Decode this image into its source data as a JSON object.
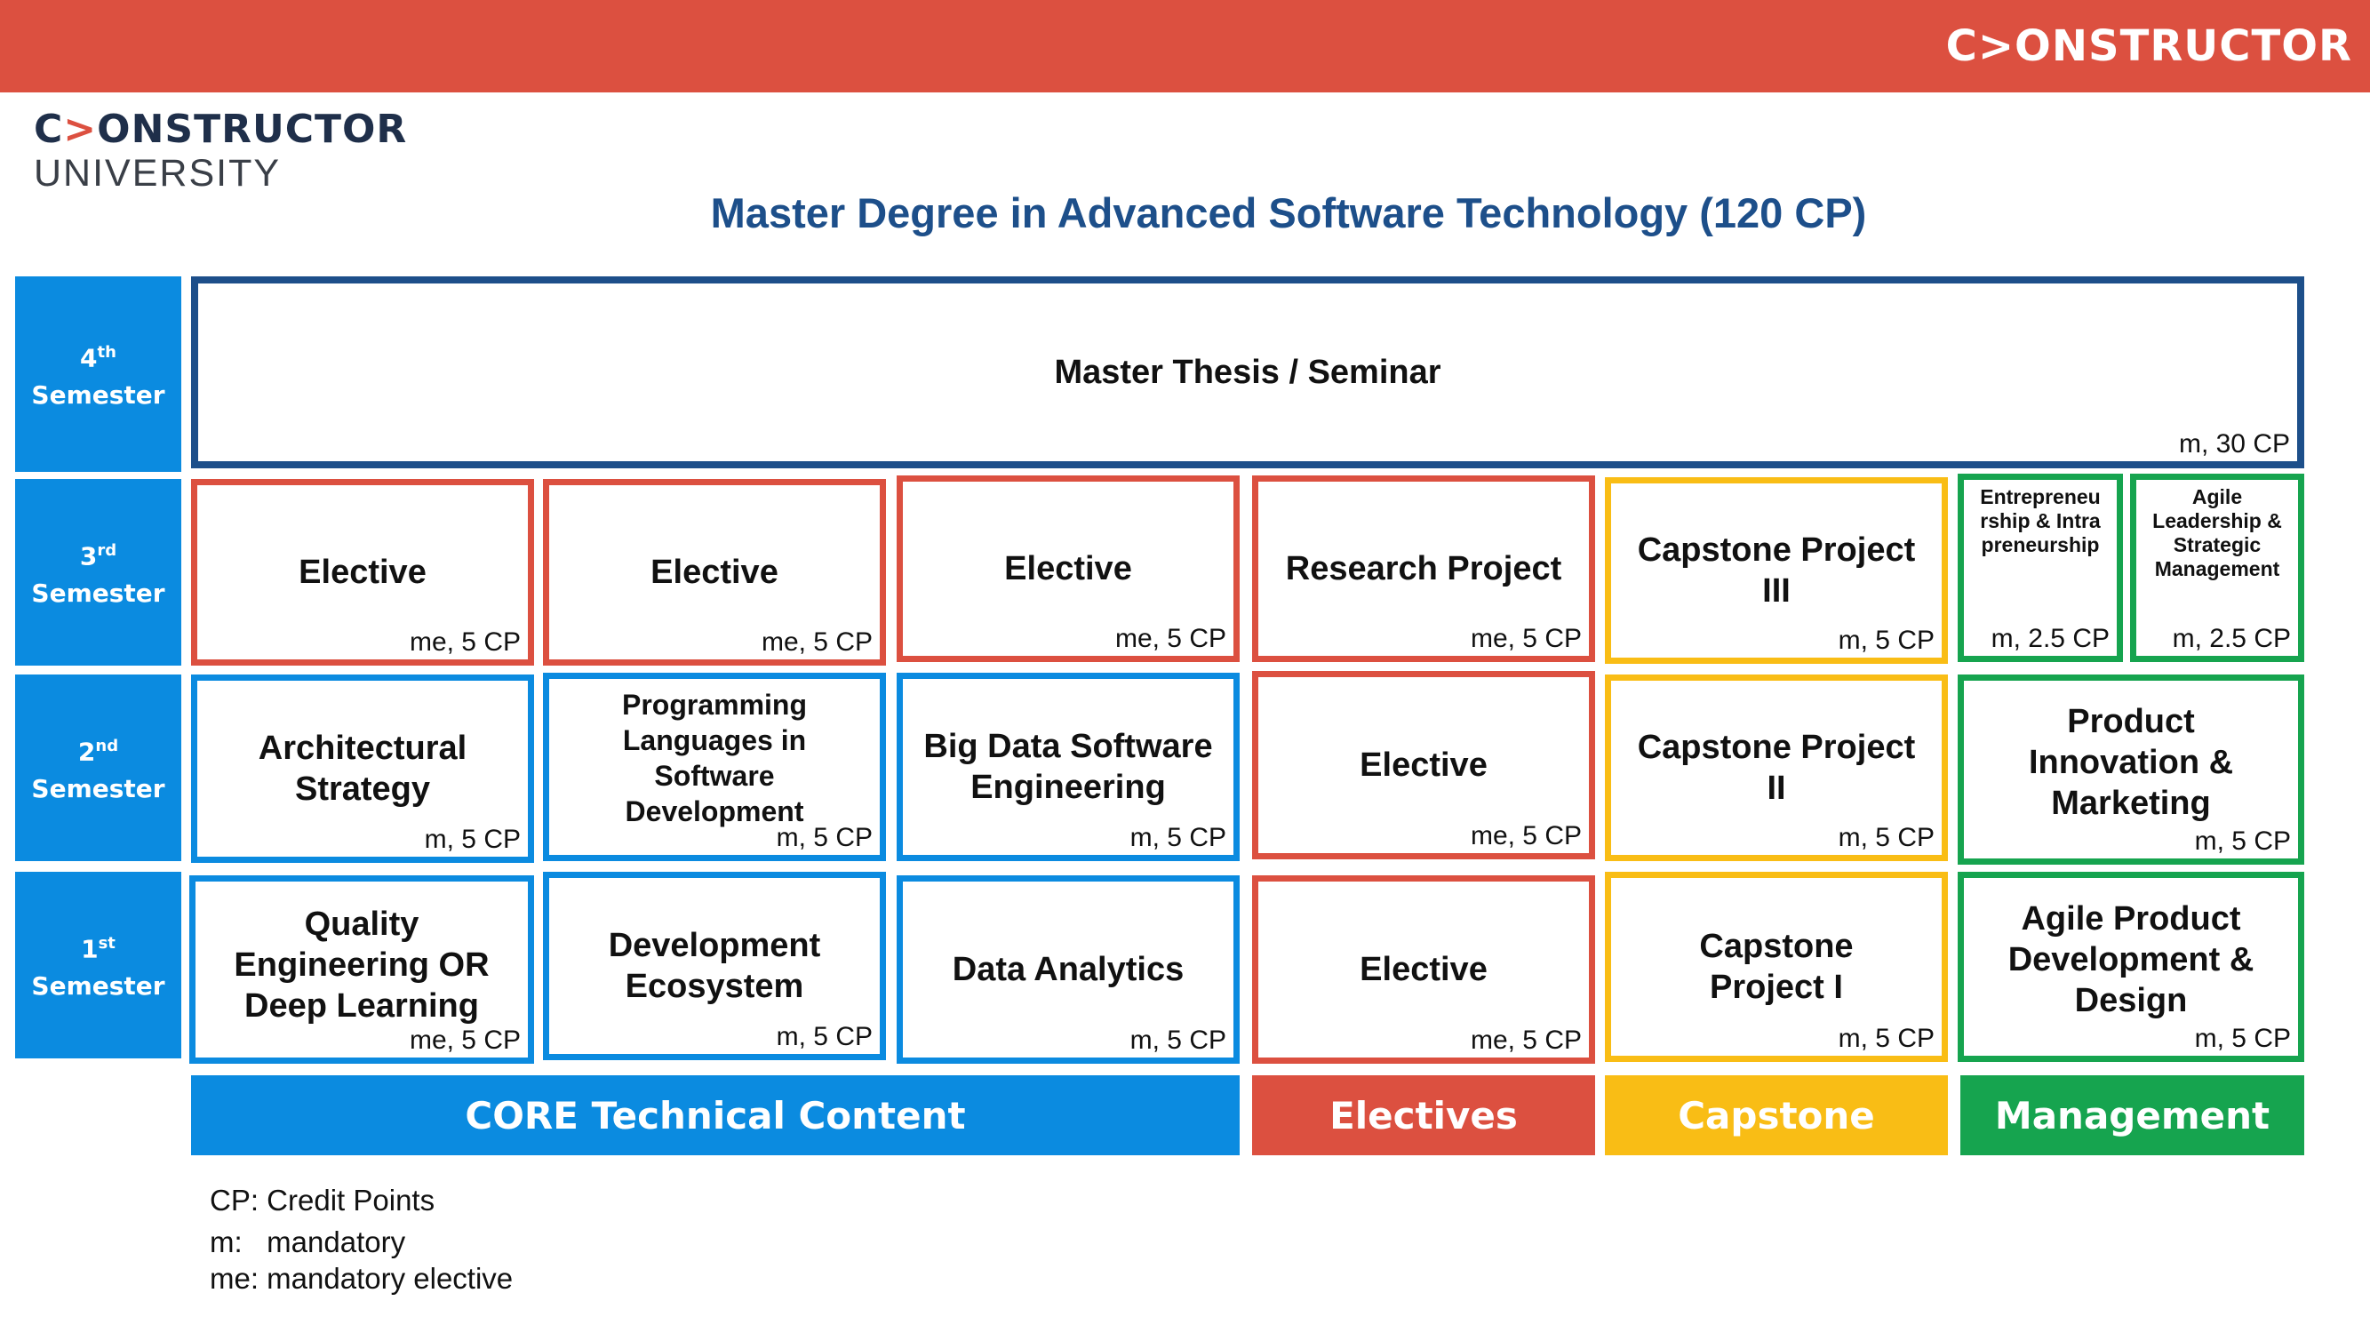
{
  "brand": {
    "banner_logo": "C>ONSTRUCTOR",
    "logo_top": "ONSTRUCTOR",
    "logo_top_prefix": "C",
    "logo_top_chevron": ">",
    "logo_bottom": "UNIVERSITY"
  },
  "title": "Master Degree in Advanced Software Technology (120 CP)",
  "semesters": {
    "s4": {
      "num": "4",
      "sup": "th",
      "label": "Semester"
    },
    "s3": {
      "num": "3",
      "sup": "rd",
      "label": "Semester"
    },
    "s2": {
      "num": "2",
      "sup": "nd",
      "label": "Semester"
    },
    "s1": {
      "num": "1",
      "sup": "st",
      "label": "Semester"
    }
  },
  "modules": {
    "thesis": {
      "name": "Master Thesis / Seminar",
      "cp": "m, 30 CP"
    },
    "s3_elective_1": {
      "name": "Elective",
      "cp": "me, 5 CP"
    },
    "s3_elective_2": {
      "name": "Elective",
      "cp": "me, 5 CP"
    },
    "s3_elective_3": {
      "name": "Elective",
      "cp": "me, 5 CP"
    },
    "research_project": {
      "name": "Research Project",
      "cp": "me, 5 CP"
    },
    "capstone_3": {
      "name": "Capstone Project III",
      "cp": "m, 5 CP"
    },
    "entrepreneurship": {
      "name": "Entrepreneurship & Intrapreneurship",
      "cp": "m, 2.5 CP"
    },
    "agile_leadership": {
      "name": "Agile Leadership & Strategic Management",
      "cp": "m, 2.5 CP"
    },
    "architectural_strategy": {
      "name": "Architectural Strategy",
      "cp": "m, 5 CP"
    },
    "programming_languages": {
      "name": "Programming Languages in Software Development",
      "cp": "m, 5 CP"
    },
    "big_data": {
      "name": "Big Data Software Engineering",
      "cp": "m, 5 CP"
    },
    "s2_elective": {
      "name": "Elective",
      "cp": "me, 5 CP"
    },
    "capstone_2": {
      "name": "Capstone Project II",
      "cp": "m, 5 CP"
    },
    "product_innovation": {
      "name": "Product Innovation & Marketing",
      "cp": "m, 5 CP"
    },
    "quality_engineering": {
      "name": "Quality Engineering OR Deep Learning",
      "cp": "me, 5 CP"
    },
    "development_ecosystem": {
      "name": "Development Ecosystem",
      "cp": "m, 5 CP"
    },
    "data_analytics": {
      "name": "Data Analytics",
      "cp": "m, 5 CP"
    },
    "s1_elective": {
      "name": "Elective",
      "cp": "me, 5 CP"
    },
    "capstone_1": {
      "name": "Capstone Project I",
      "cp": "m, 5 CP"
    },
    "agile_product": {
      "name": "Agile Product Development & Design",
      "cp": "m, 5 CP"
    }
  },
  "categories": {
    "core": "CORE Technical Content",
    "electives": "Electives",
    "capstone": "Capstone",
    "management": "Management"
  },
  "notes": {
    "cp": "CP: Credit Points",
    "m": "m:   mandatory",
    "me": "me: mandatory elective"
  },
  "colors": {
    "banner": "#dc5040",
    "core": "#0b8be0",
    "electives": "#dc5040",
    "capstone": "#f9bd15",
    "management": "#16a44f",
    "thesis": "#1d4f8a"
  }
}
